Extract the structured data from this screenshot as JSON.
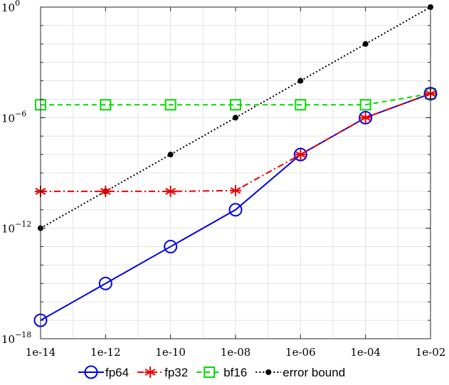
{
  "chart_data": {
    "type": "line",
    "x_scale": "log",
    "y_scale": "log",
    "x": [
      1e-14,
      1e-12,
      1e-10,
      1e-08,
      1e-06,
      0.0001,
      0.01
    ],
    "x_tick_labels": [
      "1e-14",
      "1e-12",
      "1e-10",
      "1e-08",
      "1e-06",
      "1e-04",
      "1e-02"
    ],
    "y_ticks": [
      {
        "base": "10",
        "exp": "0",
        "value": 1
      },
      {
        "base": "10",
        "exp": "−6",
        "value": 1e-06
      },
      {
        "base": "10",
        "exp": "−12",
        "value": 1e-12
      },
      {
        "base": "10",
        "exp": "−18",
        "value": 1e-18
      }
    ],
    "xlim": [
      1e-14,
      0.01
    ],
    "ylim": [
      1e-18,
      1
    ],
    "grid": true,
    "legend_position": "bottom",
    "series": [
      {
        "name": "fp64",
        "color": "#0000ee",
        "marker": "circle",
        "dash": "solid",
        "values": [
          1e-17,
          1e-15,
          1e-13,
          1e-11,
          1e-08,
          1e-06,
          2e-05
        ]
      },
      {
        "name": "fp32",
        "color": "#ee0000",
        "marker": "asterisk",
        "dash": "dashdot",
        "values": [
          1e-10,
          1e-10,
          1e-10,
          1.1e-10,
          1e-08,
          1e-06,
          2e-05
        ]
      },
      {
        "name": "bf16",
        "color": "#00dd00",
        "marker": "square",
        "dash": "dashed",
        "values": [
          5e-06,
          5e-06,
          5e-06,
          5e-06,
          5e-06,
          5e-06,
          2e-05
        ]
      },
      {
        "name": "error bound",
        "color": "#000000",
        "marker": "dot",
        "dash": "dotted",
        "values": [
          1e-12,
          1e-10,
          1e-08,
          1e-06,
          0.0001,
          0.01,
          1
        ]
      }
    ]
  }
}
